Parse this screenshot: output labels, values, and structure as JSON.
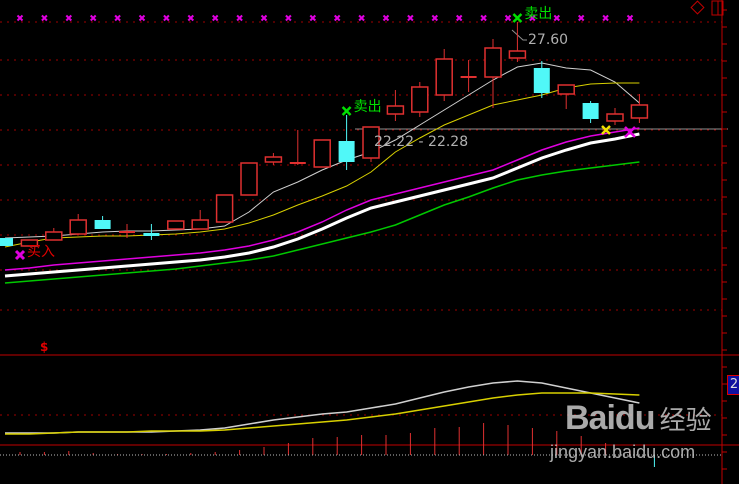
{
  "chart_data": {
    "type": "candlestick",
    "title": "",
    "colors": {
      "up": "#e03030",
      "down": "#50f8f8",
      "ma1": "#d0d0d0",
      "ma2": "#d8d000",
      "ma3": "#e000e0",
      "ma4": "#ffffff",
      "ma5": "#00c800",
      "grid": "#a00000",
      "marker": "#e000e0"
    },
    "grid": true,
    "candles": [
      {
        "o": 16.8,
        "c": 16.4,
        "h": 16.8,
        "l": 16.4
      },
      {
        "o": 16.4,
        "c": 16.7,
        "h": 16.7,
        "l": 16.4
      },
      {
        "o": 16.7,
        "c": 17.1,
        "h": 17.3,
        "l": 16.7
      },
      {
        "o": 17.0,
        "c": 17.7,
        "h": 18.0,
        "l": 17.0
      },
      {
        "o": 17.7,
        "c": 17.25,
        "h": 17.9,
        "l": 17.25
      },
      {
        "o": 17.1,
        "c": 17.1,
        "h": 17.5,
        "l": 16.8
      },
      {
        "o": 17.05,
        "c": 16.9,
        "h": 17.5,
        "l": 16.7
      },
      {
        "o": 17.25,
        "c": 17.65,
        "h": 17.65,
        "l": 17.25
      },
      {
        "o": 17.25,
        "c": 17.7,
        "h": 18.2,
        "l": 17.25
      },
      {
        "o": 17.6,
        "c": 18.95,
        "h": 18.95,
        "l": 17.6
      },
      {
        "o": 18.95,
        "c": 20.55,
        "h": 20.55,
        "l": 18.95
      },
      {
        "o": 20.6,
        "c": 20.85,
        "h": 21.05,
        "l": 20.45
      },
      {
        "o": 20.55,
        "c": 20.55,
        "h": 22.2,
        "l": 20.45
      },
      {
        "o": 20.35,
        "c": 21.7,
        "h": 21.7,
        "l": 20.35
      },
      {
        "o": 21.65,
        "c": 20.6,
        "h": 22.95,
        "l": 20.2
      },
      {
        "o": 20.8,
        "c": 22.35,
        "h": 22.35,
        "l": 20.6
      },
      {
        "o": 23.0,
        "c": 23.4,
        "h": 24.2,
        "l": 22.65
      },
      {
        "o": 23.1,
        "c": 24.35,
        "h": 24.6,
        "l": 22.85
      },
      {
        "o": 23.95,
        "c": 25.75,
        "h": 26.25,
        "l": 23.65
      },
      {
        "o": 24.85,
        "c": 24.85,
        "h": 25.7,
        "l": 24.1
      },
      {
        "o": 24.85,
        "c": 26.3,
        "h": 26.75,
        "l": 23.3
      },
      {
        "o": 25.8,
        "c": 26.15,
        "h": 27.6,
        "l": 25.6
      },
      {
        "o": 25.3,
        "c": 24.05,
        "h": 25.65,
        "l": 23.8
      },
      {
        "o": 24.0,
        "c": 24.45,
        "h": 24.45,
        "l": 23.25
      },
      {
        "o": 23.55,
        "c": 22.75,
        "h": 23.65,
        "l": 22.55
      },
      {
        "o": 22.65,
        "c": 23.0,
        "h": 23.3,
        "l": 22.45
      },
      {
        "o": 22.8,
        "c": 23.45,
        "h": 24.0,
        "l": 22.55
      }
    ],
    "ma_lines": [
      {
        "key": "ma1",
        "width": 1,
        "values": [
          16.8,
          16.85,
          16.9,
          17.0,
          17.1,
          17.15,
          17.15,
          17.2,
          17.25,
          17.4,
          18.1,
          19.1,
          19.6,
          20.2,
          20.7,
          21.1,
          21.7,
          22.45,
          23.2,
          23.95,
          24.7,
          25.35,
          25.55,
          25.3,
          25.2,
          24.6,
          23.55
        ]
      },
      {
        "key": "ma2",
        "width": 1,
        "values": [
          16.35,
          16.6,
          16.8,
          16.85,
          16.9,
          16.9,
          16.95,
          17.0,
          17.1,
          17.25,
          17.55,
          17.95,
          18.45,
          18.9,
          19.4,
          20.1,
          21.1,
          21.8,
          22.45,
          22.95,
          23.45,
          23.7,
          23.95,
          24.3,
          24.5,
          24.55,
          24.55
        ]
      },
      {
        "key": "ma3",
        "width": 1.5,
        "values": [
          15.2,
          15.3,
          15.45,
          15.55,
          15.65,
          15.75,
          15.85,
          15.95,
          16.05,
          16.2,
          16.4,
          16.7,
          17.1,
          17.6,
          18.2,
          18.7,
          19.0,
          19.3,
          19.6,
          19.9,
          20.2,
          20.7,
          21.2,
          21.6,
          21.9,
          22.1,
          22.3
        ]
      },
      {
        "key": "ma4",
        "width": 3,
        "values": [
          14.9,
          15.0,
          15.1,
          15.2,
          15.3,
          15.4,
          15.5,
          15.6,
          15.7,
          15.85,
          16.05,
          16.35,
          16.75,
          17.25,
          17.8,
          18.3,
          18.6,
          18.9,
          19.2,
          19.5,
          19.8,
          20.3,
          20.8,
          21.2,
          21.55,
          21.75,
          22.0
        ]
      },
      {
        "key": "ma5",
        "width": 1.5,
        "values": [
          14.55,
          14.65,
          14.75,
          14.85,
          14.95,
          15.05,
          15.15,
          15.25,
          15.4,
          15.55,
          15.7,
          15.9,
          16.2,
          16.5,
          16.8,
          17.1,
          17.45,
          17.95,
          18.45,
          18.85,
          19.3,
          19.7,
          19.95,
          20.15,
          20.3,
          20.45,
          20.6
        ]
      }
    ],
    "annotations": {
      "high_label": "27.60",
      "range_label": "22.22 - 22.28",
      "range_level": 22.25
    },
    "signals": [
      {
        "type": "sell",
        "text": "卖出",
        "index": 14
      },
      {
        "type": "sell",
        "text": "卖出",
        "index": 21
      },
      {
        "type": "buy",
        "text": "买入",
        "index": 0
      }
    ],
    "indicator": {
      "line1": [
        22,
        22,
        22,
        23,
        23,
        23,
        23,
        24,
        25,
        27,
        31,
        35,
        38,
        41,
        43,
        47,
        51,
        57,
        63,
        68,
        72,
        74,
        72,
        67,
        62,
        57,
        52
      ],
      "line2": [
        21,
        21,
        22,
        23,
        23,
        23,
        24,
        24,
        24,
        25,
        27,
        29,
        31,
        33,
        35,
        38,
        41,
        45,
        49,
        53,
        57,
        60,
        62,
        62,
        62,
        61,
        60
      ],
      "bars": [
        3,
        3,
        4,
        2,
        1,
        1,
        1,
        2,
        3,
        5,
        8,
        12,
        17,
        18,
        20,
        20,
        22,
        27,
        28,
        32,
        30,
        27,
        24,
        19,
        12,
        4,
        -12
      ],
      "line1_color": "#d0d0d0",
      "line2_color": "#d8d000"
    }
  },
  "ui": {
    "dollar_mark": "$",
    "axis_badge": "2",
    "diamond_icon": "diamond-icon",
    "panel_icon": "panel-toggle-icon",
    "watermark": {
      "brand": "Bai",
      "brand2": "du",
      "cn": "经验",
      "url": "jingyan.baidu.com"
    }
  }
}
